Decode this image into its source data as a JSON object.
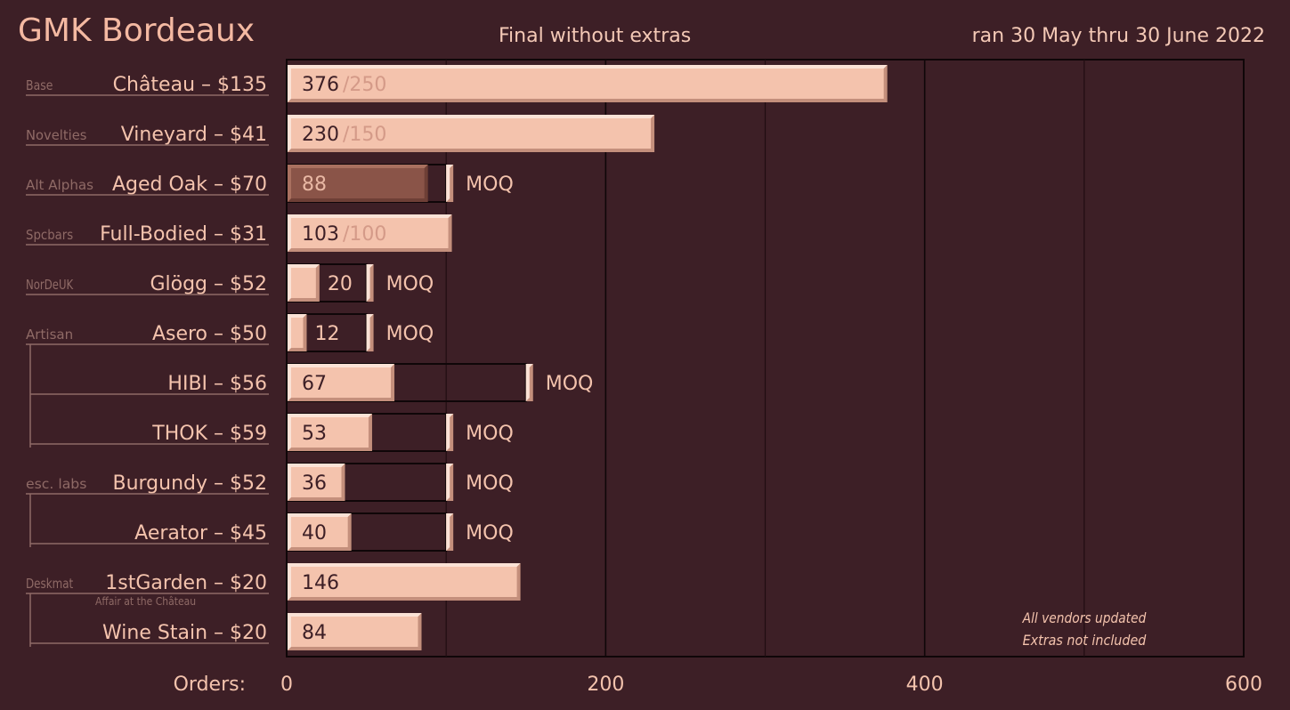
{
  "header": {
    "title": "GMK Bordeaux",
    "subtitle": "Final without extras",
    "dates": "ran 30 May thru 30 June 2022"
  },
  "colors": {
    "background": "#3d1f26",
    "bar_fill": "#f4c3ad",
    "bar_light": "#fbe2d6",
    "bar_dark": "#c48f7c",
    "bar_muted": "#8a5448",
    "bar_muted_light": "#a9705f",
    "target_text": "#d49a88",
    "frame": "#0f0608",
    "grid": "#1f0d11",
    "text": "#f4c3ad",
    "group_text": "#8f6a66"
  },
  "chart_data": {
    "type": "bar",
    "orientation": "horizontal",
    "xlabel": "Orders:",
    "xlim": [
      0,
      600
    ],
    "xticks": [
      0,
      200,
      400,
      600
    ],
    "grid": true,
    "rows": [
      {
        "group": "Base",
        "category": "Château – $135",
        "value": 376,
        "target": 250,
        "target_label": "/250"
      },
      {
        "group": "Novelties",
        "category": "Vineyard – $41",
        "value": 230,
        "target": 150,
        "target_label": "/150"
      },
      {
        "group": "Alt Alphas",
        "category": "Aged Oak – $70",
        "value": 88,
        "moq": 100,
        "moq_label": "MOQ",
        "muted": true
      },
      {
        "group": "Spcbars",
        "category": "Full-Bodied – $31",
        "value": 103,
        "target": 100,
        "target_label": "/100"
      },
      {
        "group": "NorDeUK",
        "category": "Glögg – $52",
        "value": 20,
        "moq": 50,
        "moq_label": "MOQ"
      },
      {
        "group": "Artisan",
        "category": "Asero – $50",
        "value": 12,
        "moq": 50,
        "moq_label": "MOQ"
      },
      {
        "category": "HIBI – $56",
        "value": 67,
        "moq": 150,
        "moq_label": "MOQ"
      },
      {
        "category": "THOK – $59",
        "value": 53,
        "moq": 100,
        "moq_label": "MOQ"
      },
      {
        "group": "esc. labs",
        "category": "Burgundy – $52",
        "value": 36,
        "moq": 100,
        "moq_label": "MOQ"
      },
      {
        "category": "Aerator – $45",
        "value": 40,
        "moq": 100,
        "moq_label": "MOQ"
      },
      {
        "group": "Deskmat",
        "category": "1stGarden – $20",
        "sublabel": "Affair at the Château",
        "value": 146
      },
      {
        "category": "Wine Stain – $20",
        "value": 84
      }
    ],
    "brackets": [
      {
        "from": 5,
        "to": 7
      },
      {
        "from": 8,
        "to": 9
      },
      {
        "from": 10,
        "to": 11
      }
    ],
    "annotations": [
      "All vendors updated",
      "Extras not included"
    ]
  }
}
